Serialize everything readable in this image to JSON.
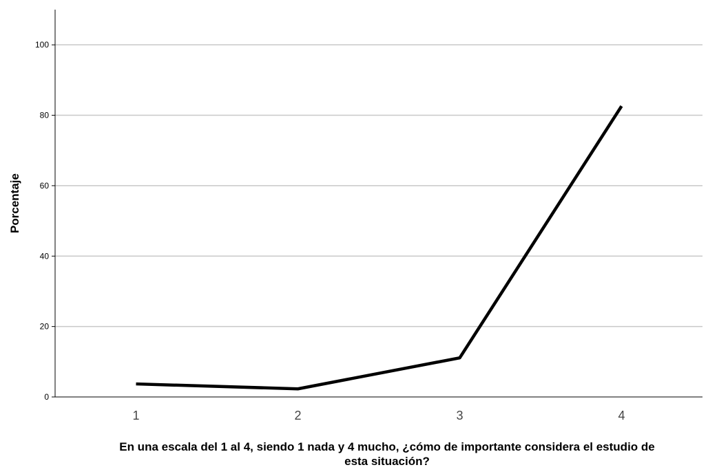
{
  "chart_data": {
    "type": "line",
    "xlabel": "En una escala del 1 al 4, siendo 1 nada y 4 mucho, ¿cómo de importante considera el estudio de esta situación?",
    "xlabel_lines": [
      "En una escala del 1 al 4, siendo 1 nada y 4 mucho, ¿cómo de importante considera el estudio de",
      "esta situación?"
    ],
    "ylabel": "Porcentaje",
    "categories": [
      "1",
      "2",
      "3",
      "4"
    ],
    "series": [
      {
        "values": [
          3.7,
          2.3,
          11.1,
          82.6
        ],
        "color": "#000000"
      }
    ],
    "ylim": [
      0,
      110
    ],
    "yticks": [
      "0",
      "20",
      "40",
      "60",
      "80",
      "100"
    ],
    "grid": "horizontal",
    "gridline_color": "#c8c8c8",
    "legend": "none"
  }
}
